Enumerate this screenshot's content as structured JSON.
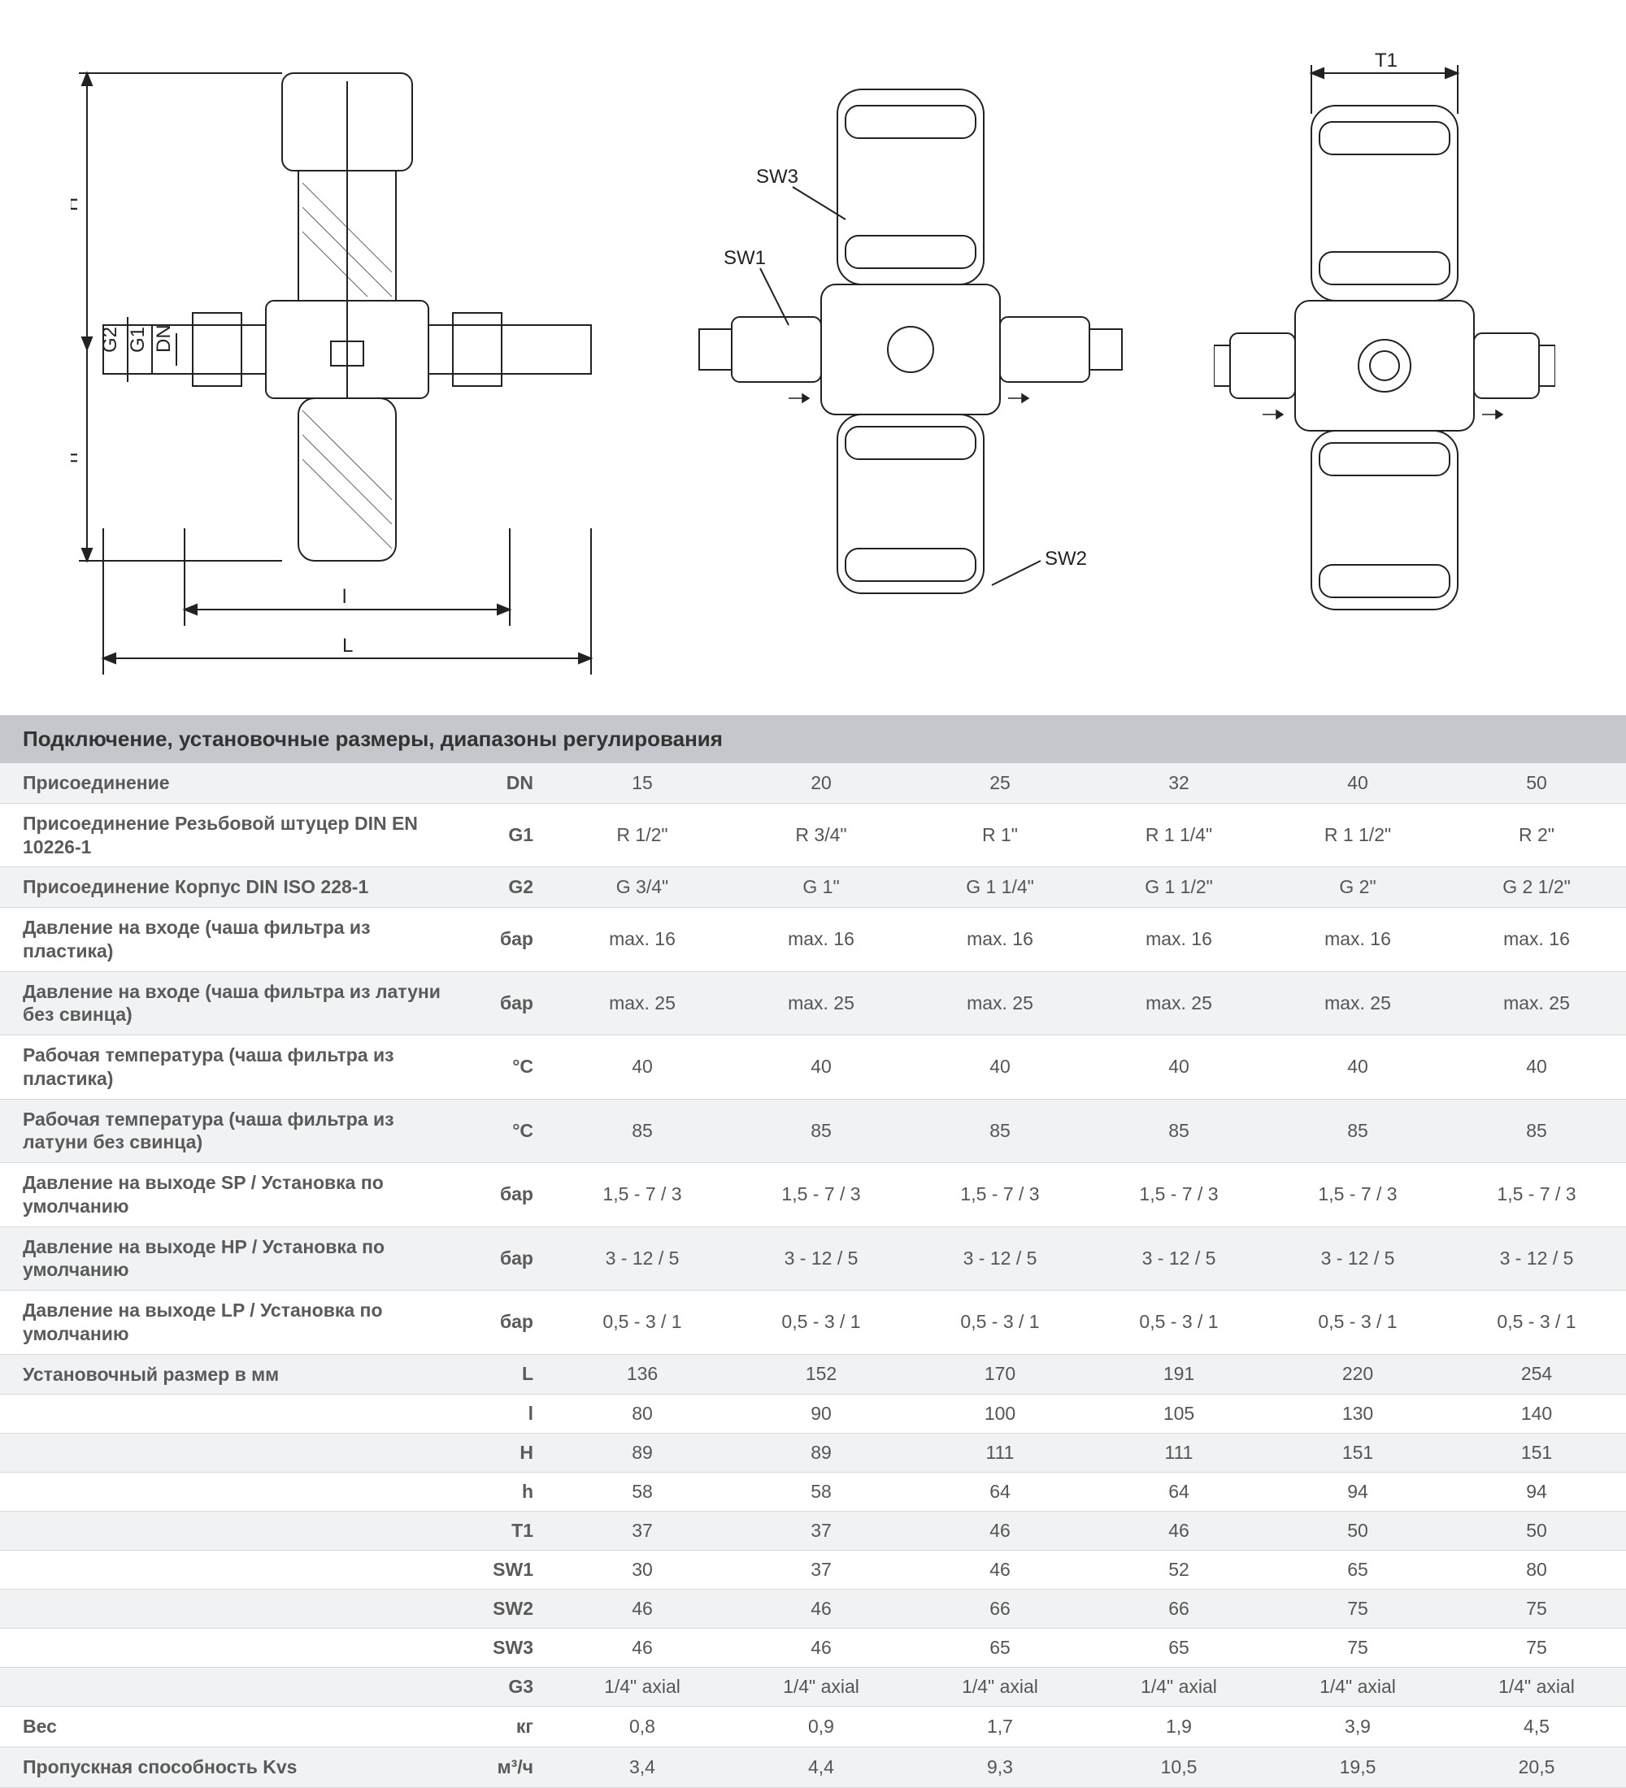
{
  "diagram": {
    "stroke": "#222222",
    "labels": {
      "H": "H",
      "h": "h",
      "G2": "G2",
      "G1": "G1",
      "DN": "DN",
      "l": "l",
      "L": "L",
      "SW1": "SW1",
      "SW2": "SW2",
      "SW3": "SW3",
      "T1": "T1"
    }
  },
  "table": {
    "title": "Подключение, установочные размеры, диапазоны регулирования",
    "title_bg": "#c4c7cb",
    "band_bg": "#f1f2f3",
    "border_color": "#d9dadd",
    "text_color": "#555555",
    "label_fontsize": 23,
    "rows": [
      {
        "label": "Присоединение",
        "unit": "DN",
        "vals": [
          "15",
          "20",
          "25",
          "32",
          "40",
          "50"
        ]
      },
      {
        "label": "Присоединение Резьбовой штуцер DIN EN 10226-1",
        "unit": "G1",
        "vals": [
          "R 1/2\"",
          "R 3/4\"",
          "R 1\"",
          "R 1 1/4\"",
          "R 1 1/2\"",
          "R 2\""
        ]
      },
      {
        "label": "Присоединение Корпус DIN ISO 228-1",
        "unit": "G2",
        "vals": [
          "G 3/4\"",
          "G 1\"",
          "G 1 1/4\"",
          "G 1 1/2\"",
          "G 2\"",
          "G 2 1/2\""
        ]
      },
      {
        "label": "Давление на входе (чаша фильтра из пластика)",
        "unit": "бар",
        "vals": [
          "max. 16",
          "max. 16",
          "max. 16",
          "max. 16",
          "max. 16",
          "max. 16"
        ]
      },
      {
        "label": "Давление на входе (чаша фильтра из латуни без свинца)",
        "unit": "бар",
        "vals": [
          "max. 25",
          "max. 25",
          "max. 25",
          "max. 25",
          "max. 25",
          "max. 25"
        ]
      },
      {
        "label": "Рабочая температура (чаша фильтра из пластика)",
        "unit": "°C",
        "vals": [
          "40",
          "40",
          "40",
          "40",
          "40",
          "40"
        ]
      },
      {
        "label": "Рабочая температура (чаша фильтра из латуни без свинца)",
        "unit": "°C",
        "vals": [
          "85",
          "85",
          "85",
          "85",
          "85",
          "85"
        ]
      },
      {
        "label": "Давление на выходе SP / Установка по умолчанию",
        "unit": "бар",
        "vals": [
          "1,5 - 7 / 3",
          "1,5 - 7 / 3",
          "1,5 - 7 / 3",
          "1,5 - 7 / 3",
          "1,5 - 7 / 3",
          "1,5 - 7 / 3"
        ]
      },
      {
        "label": "Давление на выходе HP / Установка по умолчанию",
        "unit": "бар",
        "vals": [
          "3 - 12 / 5",
          "3 - 12 / 5",
          "3 - 12 / 5",
          "3 - 12 / 5",
          "3 - 12 / 5",
          "3 - 12 / 5"
        ]
      },
      {
        "label": "Давление на выходе LP / Установка по умолчанию",
        "unit": "бар",
        "vals": [
          "0,5 - 3 / 1",
          "0,5 - 3 / 1",
          "0,5 - 3 / 1",
          "0,5 - 3 / 1",
          "0,5 - 3 / 1",
          "0,5 - 3 / 1"
        ]
      },
      {
        "label": "Установочный размер в мм",
        "unit": "L",
        "vals": [
          "136",
          "152",
          "170",
          "191",
          "220",
          "254"
        ]
      },
      {
        "label": "",
        "unit": "l",
        "vals": [
          "80",
          "90",
          "100",
          "105",
          "130",
          "140"
        ]
      },
      {
        "label": "",
        "unit": "H",
        "vals": [
          "89",
          "89",
          "111",
          "111",
          "151",
          "151"
        ]
      },
      {
        "label": "",
        "unit": "h",
        "vals": [
          "58",
          "58",
          "64",
          "64",
          "94",
          "94"
        ]
      },
      {
        "label": "",
        "unit": "T1",
        "vals": [
          "37",
          "37",
          "46",
          "46",
          "50",
          "50"
        ]
      },
      {
        "label": "",
        "unit": "SW1",
        "vals": [
          "30",
          "37",
          "46",
          "52",
          "65",
          "80"
        ]
      },
      {
        "label": "",
        "unit": "SW2",
        "vals": [
          "46",
          "46",
          "66",
          "66",
          "75",
          "75"
        ]
      },
      {
        "label": "",
        "unit": "SW3",
        "vals": [
          "46",
          "46",
          "65",
          "65",
          "75",
          "75"
        ]
      },
      {
        "label": "",
        "unit": "G3",
        "vals": [
          "1/4\" axial",
          "1/4\" axial",
          "1/4\" axial",
          "1/4\" axial",
          "1/4\" axial",
          "1/4\" axial"
        ]
      },
      {
        "label": "Вес",
        "unit": "кг",
        "vals": [
          "0,8",
          "0,9",
          "1,7",
          "1,9",
          "3,9",
          "4,5"
        ]
      },
      {
        "label": "Пропускная способность Kvs",
        "unit": "м³/ч",
        "vals": [
          "3,4",
          "4,4",
          "9,3",
          "10,5",
          "19,5",
          "20,5"
        ]
      }
    ]
  }
}
